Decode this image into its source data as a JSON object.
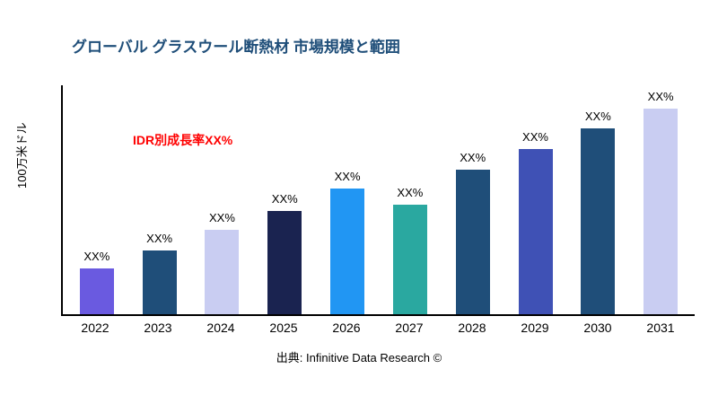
{
  "title": "グローバル グラスウール断熱材 市場規模と範囲",
  "y_axis_label": "100万米ドル",
  "annotation": "IDR別成長率XX%",
  "source": "出典: Infinitive Data Research ©",
  "chart_data": {
    "type": "bar",
    "title": "グローバル グラスウール断熱材 市場規模と範囲",
    "xlabel": "",
    "ylabel": "100万米ドル",
    "categories": [
      "2022",
      "2023",
      "2024",
      "2025",
      "2026",
      "2027",
      "2028",
      "2029",
      "2030",
      "2031"
    ],
    "values": [
      20,
      28,
      37,
      45,
      55,
      48,
      63,
      72,
      81,
      90
    ],
    "bar_labels": [
      "XX%",
      "XX%",
      "XX%",
      "XX%",
      "XX%",
      "XX%",
      "XX%",
      "XX%",
      "XX%",
      "XX%"
    ],
    "colors": [
      "#6A5AE0",
      "#1F4E79",
      "#C9CDF2",
      "#1A2350",
      "#2196F3",
      "#2AA8A0",
      "#1F4E79",
      "#3F51B5",
      "#1F4E79",
      "#C9CDF2"
    ],
    "ylim": [
      0,
      100
    ],
    "grid": false,
    "legend": "none",
    "annotation": "IDR別成長率XX%"
  }
}
